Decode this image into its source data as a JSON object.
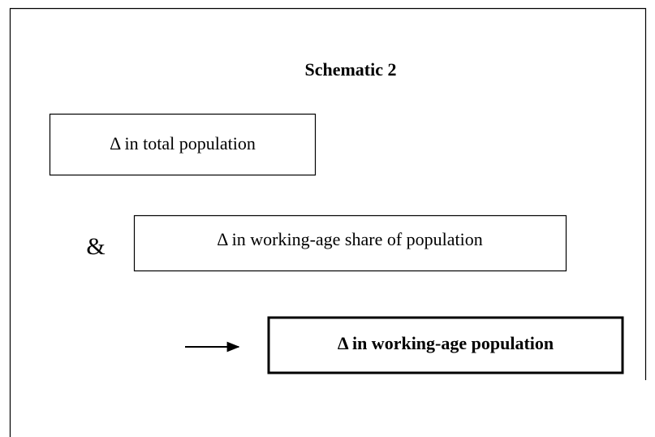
{
  "title": "Schematic 2",
  "nodes": [
    {
      "label": "Δ in total population"
    },
    {
      "label": "Δ in working-age share of population"
    },
    {
      "label": "Δ in working-age population"
    }
  ],
  "connector": "&"
}
